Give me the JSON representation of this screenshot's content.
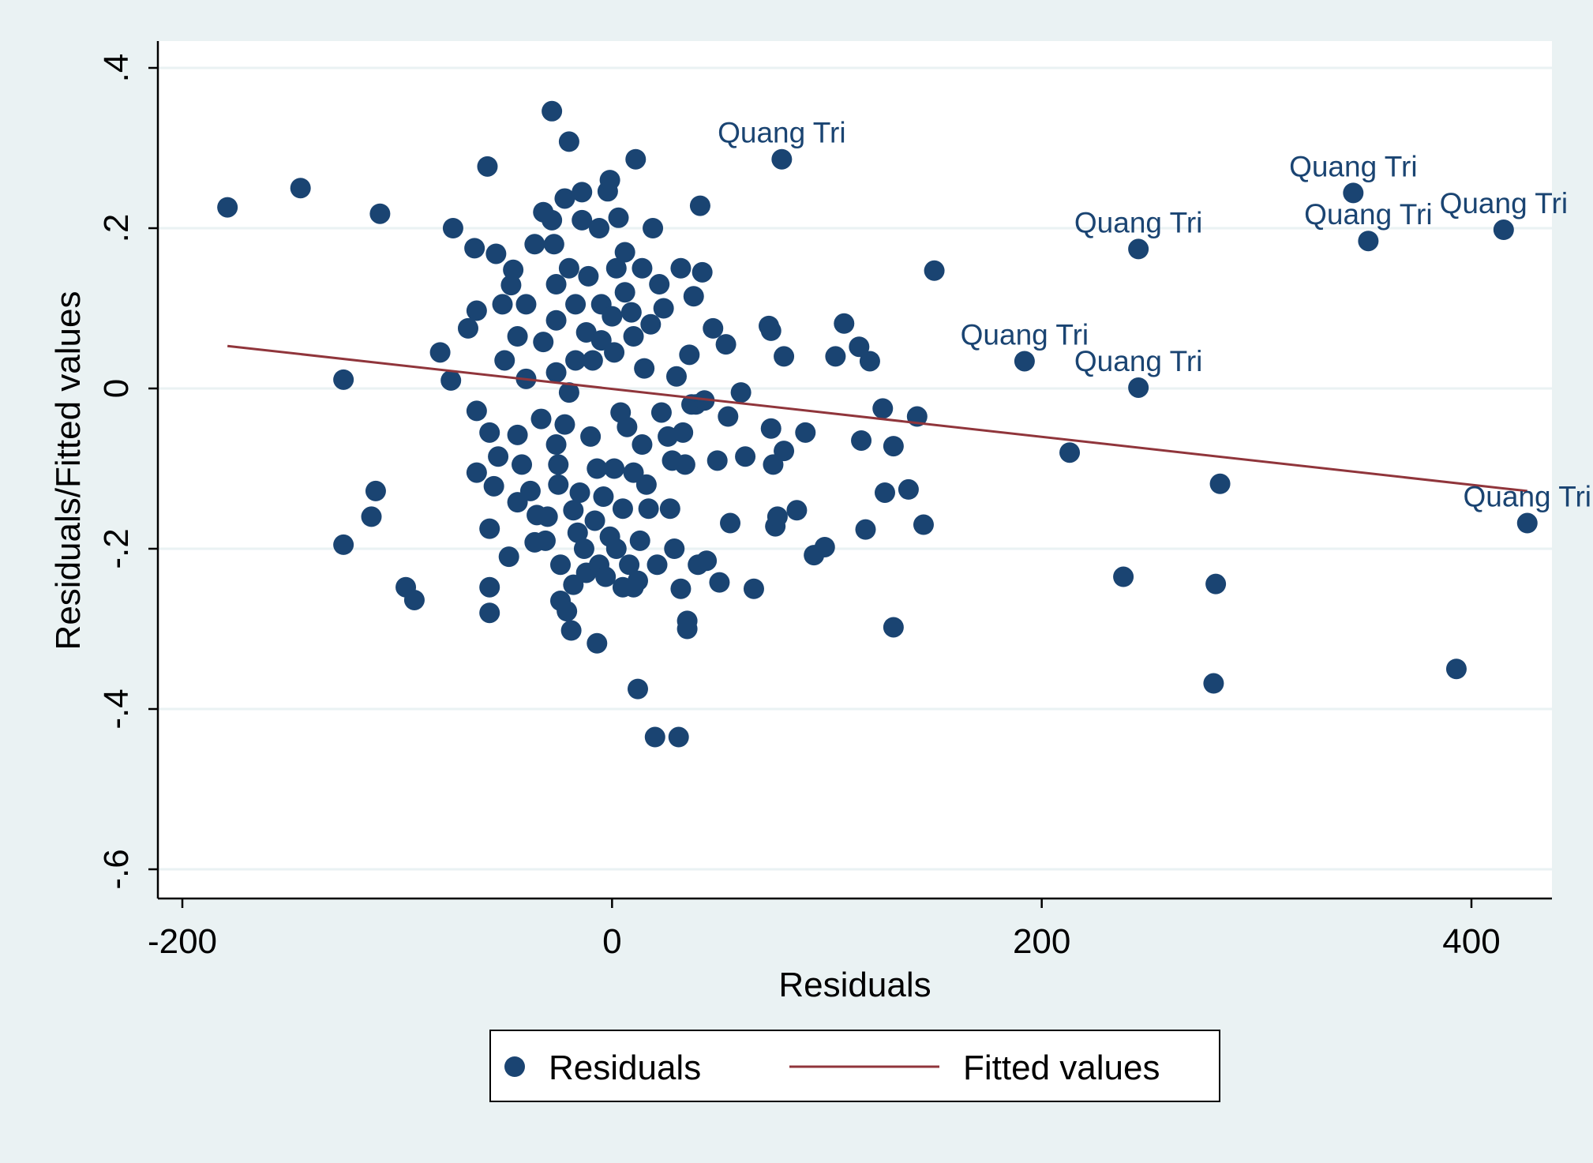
{
  "colors": {
    "background": "#eaf2f3",
    "plot_background": "#ffffff",
    "grid": "#eaf2f3",
    "points": "#1a4472",
    "fit_line": "#90353b",
    "text": "#000000"
  },
  "chart_data": {
    "type": "scatter",
    "title": "",
    "xlabel": "Residuals",
    "ylabel": "Residuals/Fitted values",
    "xlim": [
      -205,
      435
    ],
    "ylim": [
      -0.63,
      0.43
    ],
    "x_ticks": [
      -200,
      0,
      200,
      400
    ],
    "x_tick_labels": [
      "-200",
      "0",
      "200",
      "400"
    ],
    "y_ticks": [
      -0.6,
      -0.4,
      -0.2,
      0,
      0.2,
      0.4
    ],
    "y_tick_labels": [
      "-.6",
      "-.4",
      "-.2",
      "0",
      ".2",
      ".4"
    ],
    "grid": "horizontal",
    "legend": {
      "placement": "bottom",
      "entries": [
        "Residuals",
        "Fitted values"
      ]
    },
    "series": [
      {
        "name": "Residuals",
        "kind": "scatter",
        "points": [
          [
            -179,
            0.226
          ],
          [
            -145,
            0.25
          ],
          [
            -108,
            0.218
          ],
          [
            -125,
            0.011
          ],
          [
            -125,
            -0.195
          ],
          [
            -110,
            -0.128
          ],
          [
            -112,
            -0.16
          ],
          [
            -96,
            -0.248
          ],
          [
            -92,
            -0.264
          ],
          [
            -80,
            0.045
          ],
          [
            -75,
            0.01
          ],
          [
            -74,
            0.2
          ],
          [
            -67,
            0.075
          ],
          [
            -64,
            0.175
          ],
          [
            -63,
            0.097
          ],
          [
            -63,
            -0.028
          ],
          [
            -63,
            -0.105
          ],
          [
            -58,
            0.277
          ],
          [
            -57,
            -0.055
          ],
          [
            -57,
            -0.175
          ],
          [
            -57,
            -0.248
          ],
          [
            -57,
            -0.28
          ],
          [
            -55,
            -0.122
          ],
          [
            -54,
            0.168
          ],
          [
            -53,
            -0.085
          ],
          [
            -51,
            0.105
          ],
          [
            -50,
            0.035
          ],
          [
            -48,
            -0.21
          ],
          [
            -47,
            0.129
          ],
          [
            -46,
            0.148
          ],
          [
            -44,
            0.065
          ],
          [
            -44,
            -0.058
          ],
          [
            -44,
            -0.142
          ],
          [
            -42,
            -0.095
          ],
          [
            -40,
            0.105
          ],
          [
            -40,
            0.012
          ],
          [
            -38,
            -0.128
          ],
          [
            -36,
            -0.192
          ],
          [
            -36,
            0.18
          ],
          [
            -35,
            -0.158
          ],
          [
            -33,
            -0.038
          ],
          [
            -32,
            0.22
          ],
          [
            -32,
            0.058
          ],
          [
            -31,
            -0.19
          ],
          [
            -30,
            -0.16
          ],
          [
            -28,
            0.346
          ],
          [
            -28,
            0.21
          ],
          [
            -27,
            0.18
          ],
          [
            -26,
            0.13
          ],
          [
            -26,
            0.085
          ],
          [
            -26,
            0.02
          ],
          [
            -26,
            -0.07
          ],
          [
            -25,
            -0.095
          ],
          [
            -25,
            -0.12
          ],
          [
            -24,
            -0.22
          ],
          [
            -24,
            -0.265
          ],
          [
            -22,
            0.237
          ],
          [
            -22,
            -0.045
          ],
          [
            -21,
            -0.278
          ],
          [
            -20,
            0.308
          ],
          [
            -20,
            0.15
          ],
          [
            -20,
            -0.005
          ],
          [
            -19,
            -0.302
          ],
          [
            -18,
            -0.152
          ],
          [
            -18,
            -0.245
          ],
          [
            -17,
            0.105
          ],
          [
            -17,
            0.035
          ],
          [
            -16,
            -0.18
          ],
          [
            -15,
            -0.13
          ],
          [
            -14,
            0.245
          ],
          [
            -14,
            0.21
          ],
          [
            -13,
            -0.2
          ],
          [
            -12,
            0.07
          ],
          [
            -12,
            -0.23
          ],
          [
            -11,
            0.14
          ],
          [
            -10,
            -0.06
          ],
          [
            -9,
            0.035
          ],
          [
            -8,
            -0.165
          ],
          [
            -7,
            -0.1
          ],
          [
            -6,
            0.2
          ],
          [
            -6,
            -0.22
          ],
          [
            -5,
            0.105
          ],
          [
            -5,
            0.06
          ],
          [
            -7,
            -0.318
          ],
          [
            -4,
            -0.135
          ],
          [
            -3,
            -0.235
          ],
          [
            -2,
            0.246
          ],
          [
            -1,
            0.26
          ],
          [
            -1,
            -0.185
          ],
          [
            0,
            0.09
          ],
          [
            1,
            0.045
          ],
          [
            1,
            -0.1
          ],
          [
            2,
            0.15
          ],
          [
            2,
            -0.2
          ],
          [
            3,
            0.213
          ],
          [
            4,
            -0.03
          ],
          [
            5,
            -0.15
          ],
          [
            5,
            -0.248
          ],
          [
            6,
            0.17
          ],
          [
            6,
            0.12
          ],
          [
            7,
            -0.048
          ],
          [
            8,
            -0.22
          ],
          [
            9,
            0.095
          ],
          [
            10,
            0.065
          ],
          [
            10,
            -0.105
          ],
          [
            10,
            -0.248
          ],
          [
            11,
            0.286
          ],
          [
            12,
            -0.375
          ],
          [
            12,
            -0.24
          ],
          [
            13,
            -0.19
          ],
          [
            14,
            0.15
          ],
          [
            14,
            -0.07
          ],
          [
            15,
            0.025
          ],
          [
            16,
            -0.12
          ],
          [
            17,
            -0.15
          ],
          [
            18,
            0.08
          ],
          [
            19,
            0.2
          ],
          [
            20,
            -0.435
          ],
          [
            21,
            -0.22
          ],
          [
            22,
            0.13
          ],
          [
            23,
            -0.03
          ],
          [
            24,
            0.1
          ],
          [
            26,
            -0.06
          ],
          [
            27,
            -0.15
          ],
          [
            28,
            -0.09
          ],
          [
            29,
            -0.2
          ],
          [
            30,
            0.015
          ],
          [
            31,
            -0.435
          ],
          [
            32,
            -0.25
          ],
          [
            32,
            0.15
          ],
          [
            33,
            -0.055
          ],
          [
            34,
            -0.095
          ],
          [
            35,
            -0.3
          ],
          [
            35,
            -0.29
          ],
          [
            36,
            0.042
          ],
          [
            37,
            -0.02
          ],
          [
            38,
            0.115
          ],
          [
            39,
            -0.02
          ],
          [
            40,
            -0.22
          ],
          [
            41,
            0.228
          ],
          [
            42,
            0.145
          ],
          [
            43,
            -0.015
          ],
          [
            44,
            -0.215
          ],
          [
            47,
            0.075
          ],
          [
            49,
            -0.09
          ],
          [
            50,
            -0.242
          ],
          [
            53,
            0.055
          ],
          [
            54,
            -0.035
          ],
          [
            55,
            -0.168
          ],
          [
            60,
            -0.005
          ],
          [
            62,
            -0.085
          ],
          [
            66,
            -0.25
          ],
          [
            73,
            0.078
          ],
          [
            74,
            0.072
          ],
          [
            74,
            -0.05
          ],
          [
            75,
            -0.095
          ],
          [
            76,
            -0.172
          ],
          [
            77,
            -0.16
          ],
          [
            79,
            0.286
          ],
          [
            80,
            0.04
          ],
          [
            80,
            -0.078
          ],
          [
            86,
            -0.152
          ],
          [
            90,
            -0.055
          ],
          [
            94,
            -0.208
          ],
          [
            99,
            -0.198
          ],
          [
            104,
            0.04
          ],
          [
            108,
            0.081
          ],
          [
            115,
            0.052
          ],
          [
            116,
            -0.065
          ],
          [
            118,
            -0.176
          ],
          [
            120,
            0.034
          ],
          [
            126,
            -0.025
          ],
          [
            127,
            -0.13
          ],
          [
            131,
            -0.072
          ],
          [
            131,
            -0.298
          ],
          [
            138,
            -0.126
          ],
          [
            142,
            -0.035
          ],
          [
            145,
            -0.17
          ],
          [
            150,
            0.147
          ],
          [
            192,
            0.034
          ],
          [
            213,
            -0.08
          ],
          [
            238,
            -0.235
          ],
          [
            245,
            0.174
          ],
          [
            245,
            0.001
          ],
          [
            280,
            -0.368
          ],
          [
            281,
            -0.244
          ],
          [
            283,
            -0.119
          ],
          [
            345,
            0.244
          ],
          [
            352,
            0.184
          ],
          [
            393,
            -0.35
          ],
          [
            415,
            0.198
          ],
          [
            426,
            -0.168
          ]
        ],
        "point_labels": [
          {
            "x": 79,
            "y": 0.286,
            "text": "Quang Tri"
          },
          {
            "x": 345,
            "y": 0.244,
            "text": "Quang Tri"
          },
          {
            "x": 352,
            "y": 0.184,
            "text": "Quang Tri"
          },
          {
            "x": 415,
            "y": 0.198,
            "text": "Quang Tri"
          },
          {
            "x": 245,
            "y": 0.174,
            "text": "Quang Tri"
          },
          {
            "x": 192,
            "y": 0.034,
            "text": "Quang Tri"
          },
          {
            "x": 245,
            "y": 0.001,
            "text": "Quang Tri"
          },
          {
            "x": 426,
            "y": -0.168,
            "text": "Quang Tri"
          }
        ]
      },
      {
        "name": "Fitted values",
        "kind": "line",
        "x": [
          -179,
          426
        ],
        "y": [
          0.053,
          -0.128
        ]
      }
    ]
  }
}
